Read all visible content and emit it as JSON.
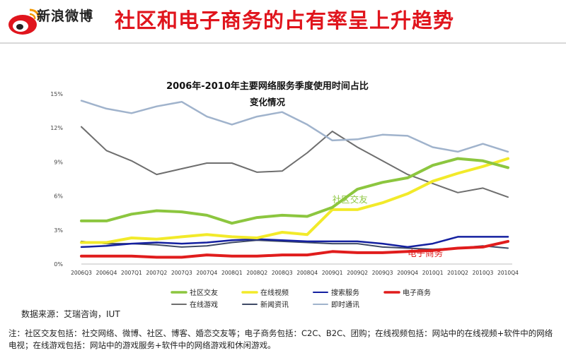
{
  "header": {
    "logo_text": "新浪微博",
    "logo_icon": "weibo-eye-icon",
    "title": "社区和电子商务的占有率呈上升趋势",
    "title_color": "#e0151d"
  },
  "chart_data": {
    "type": "line",
    "title_line1": "2006年-2010年主要网络服务季度使用时间占比",
    "title_line2": "变化情况",
    "xlabel": "",
    "ylabel": "",
    "categories": [
      "2006Q3",
      "2006Q4",
      "2007Q1",
      "2007Q2",
      "2007Q3",
      "2007Q4",
      "2008Q1",
      "2008Q2",
      "2008Q3",
      "2008Q4",
      "2009Q1",
      "2009Q2",
      "2009Q3",
      "2009Q4",
      "2010Q1",
      "2010Q2",
      "2010Q3",
      "2010Q4"
    ],
    "y_ticks": [
      "0%",
      "3%",
      "6%",
      "9%",
      "12%",
      "15%"
    ],
    "ylim": [
      0,
      15
    ],
    "grid": false,
    "legend_position": "bottom",
    "series": [
      {
        "name": "社区交友",
        "color": "#8cc63f",
        "width": 4,
        "values": [
          3.8,
          3.8,
          4.4,
          4.7,
          4.6,
          4.3,
          3.6,
          4.1,
          4.3,
          4.2,
          5.0,
          6.6,
          7.2,
          7.6,
          8.7,
          9.3,
          9.1,
          8.5
        ]
      },
      {
        "name": "在线视频",
        "color": "#f2ea2a",
        "width": 4,
        "values": [
          1.9,
          1.9,
          2.3,
          2.2,
          2.4,
          2.6,
          2.4,
          2.3,
          2.8,
          2.6,
          4.8,
          4.8,
          5.4,
          6.2,
          7.3,
          8.0,
          8.6,
          9.3
        ]
      },
      {
        "name": "搜索服务",
        "color": "#1420a0",
        "width": 2.5,
        "values": [
          1.5,
          1.6,
          1.8,
          1.9,
          1.8,
          1.9,
          2.1,
          2.2,
          2.1,
          2.0,
          2.0,
          2.0,
          1.8,
          1.5,
          1.8,
          2.4,
          2.4,
          2.4
        ]
      },
      {
        "name": "电子商务",
        "color": "#e01c1c",
        "width": 4,
        "values": [
          0.7,
          0.7,
          0.7,
          0.6,
          0.6,
          0.8,
          0.7,
          0.7,
          0.8,
          0.8,
          1.1,
          1.0,
          1.0,
          1.1,
          1.2,
          1.4,
          1.5,
          2.0
        ]
      },
      {
        "name": "在线游戏",
        "color": "#6e6e6e",
        "width": 2,
        "values": [
          12.1,
          10.0,
          9.1,
          7.9,
          8.4,
          8.9,
          8.9,
          8.1,
          8.2,
          9.8,
          11.7,
          10.3,
          9.1,
          7.9,
          7.1,
          6.3,
          6.7,
          5.9
        ]
      },
      {
        "name": "新闻资讯",
        "color": "#3f4a66",
        "width": 2,
        "values": [
          2.0,
          1.8,
          1.8,
          1.7,
          1.5,
          1.6,
          1.9,
          2.1,
          2.0,
          1.9,
          1.8,
          1.8,
          1.5,
          1.4,
          1.3,
          1.4,
          1.6,
          1.4
        ]
      },
      {
        "name": "即时通讯",
        "color": "#a0b3cc",
        "width": 2.5,
        "values": [
          14.4,
          13.7,
          13.3,
          13.9,
          14.3,
          13.0,
          12.3,
          13.0,
          13.4,
          12.3,
          10.9,
          11.0,
          11.4,
          11.3,
          10.3,
          9.9,
          10.6,
          9.9
        ]
      }
    ],
    "annotations": [
      {
        "text": "社区交友",
        "color": "#8cc63f",
        "x_index": 10,
        "y": 5.4
      },
      {
        "text": "电子商务",
        "color": "#e01c1c",
        "x_index": 13,
        "y": 0.7
      }
    ]
  },
  "footer": {
    "source": "数据来源：艾瑞咨询，IUT",
    "note": "注：社区交友包括：社交网络、微博、社区、博客、婚恋交友等；电子商务包括：C2C、B2C、团购；在线视频包括：网站中的在线视频+软件中的网络电视；在线游戏包括：网站中的游戏服务+软件中的网络游戏和休闲游戏。"
  }
}
